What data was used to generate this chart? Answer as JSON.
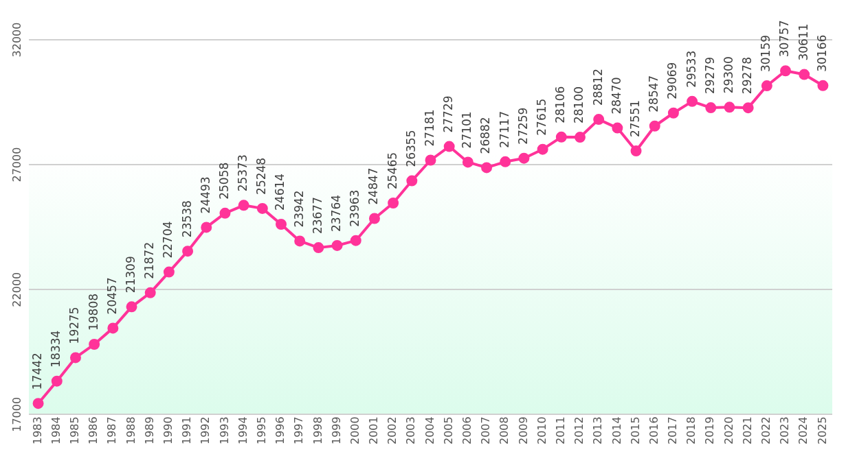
{
  "chart_data": {
    "type": "line",
    "categories": [
      "1983",
      "1984",
      "1985",
      "1986",
      "1987",
      "1988",
      "1989",
      "1990",
      "1991",
      "1992",
      "1993",
      "1994",
      "1995",
      "1996",
      "1997",
      "1998",
      "1999",
      "2000",
      "2001",
      "2002",
      "2003",
      "2004",
      "2005",
      "2006",
      "2007",
      "2008",
      "2009",
      "2010",
      "2011",
      "2012",
      "2013",
      "2014",
      "2015",
      "2016",
      "2017",
      "2018",
      "2019",
      "2020",
      "2021",
      "2022",
      "2023",
      "2024",
      "2025"
    ],
    "series": [
      {
        "color": "#ff3399",
        "values": [
          17442,
          18334,
          19275,
          19808,
          20457,
          21309,
          21872,
          22704,
          23538,
          24493,
          25058,
          25373,
          25248,
          24614,
          23942,
          23677,
          23764,
          23963,
          24847,
          25465,
          26355,
          27181,
          27729,
          27101,
          26882,
          27117,
          27259,
          27615,
          28106,
          28100,
          28812,
          28470,
          27551,
          28547,
          29069,
          29533,
          29279,
          29300,
          29278,
          30159,
          30757,
          30611,
          30166
        ]
      }
    ],
    "ylim": [
      17000,
      32000
    ],
    "yticks": [
      17000,
      22000,
      27000,
      32000
    ],
    "grid": "y",
    "legend": false,
    "marker": "circle",
    "line_style": "solid",
    "data_labels": true
  }
}
